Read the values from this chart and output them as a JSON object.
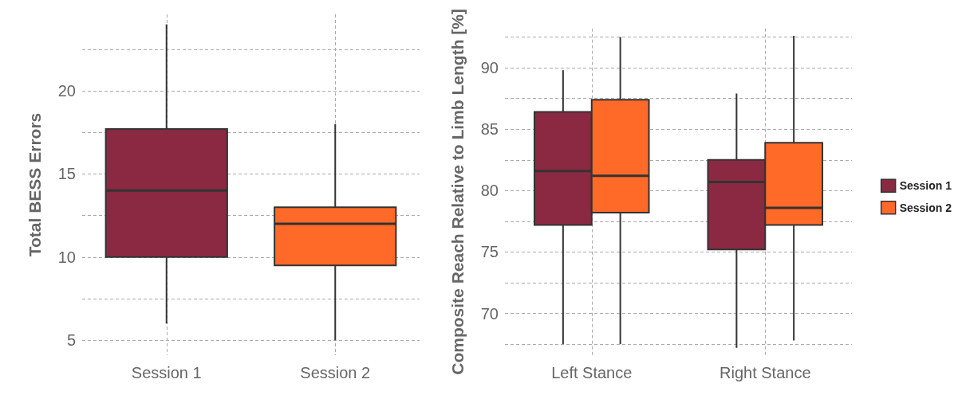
{
  "chart_data": [
    {
      "type": "box",
      "ylabel": "Total BESS Errors",
      "categories": [
        "Session 1",
        "Session 2"
      ],
      "colors": [
        "#8b2942",
        "#ff6a29"
      ],
      "boxes": [
        {
          "low": 6,
          "q1": 10,
          "median": 14,
          "q3": 17.7,
          "high": 24
        },
        {
          "low": 5,
          "q1": 9.5,
          "median": 12,
          "q3": 13,
          "high": 18
        }
      ],
      "ylim": [
        4.1,
        24.6
      ],
      "yticks": [
        5,
        {
          "value": 7.5,
          "label": null
        },
        10,
        {
          "value": 12.5,
          "label": null
        },
        15,
        {
          "value": 17.5,
          "label": null
        },
        20,
        {
          "value": 22.5,
          "label": null
        }
      ],
      "grid": true,
      "legend": false
    },
    {
      "type": "box",
      "ylabel": "Composite Reach Relative to Limb Length [%]",
      "categories": [
        "Left Stance",
        "Right Stance"
      ],
      "series": [
        {
          "name": "Session 1",
          "color": "#8b2942",
          "boxes": [
            {
              "low": 67.5,
              "q1": 77.2,
              "median": 81.6,
              "q3": 86.4,
              "high": 89.8
            },
            {
              "low": 67.2,
              "q1": 75.2,
              "median": 80.7,
              "q3": 82.5,
              "high": 87.9
            }
          ]
        },
        {
          "name": "Session 2",
          "color": "#ff6a29",
          "boxes": [
            {
              "low": 67.5,
              "q1": 78.2,
              "median": 81.2,
              "q3": 87.4,
              "high": 92.5
            },
            {
              "low": 67.8,
              "q1": 77.2,
              "median": 78.6,
              "q3": 83.9,
              "high": 92.6
            }
          ]
        }
      ],
      "ylim": [
        66.6,
        93.2
      ],
      "yticks": [
        {
          "value": 67.5,
          "label": null
        },
        70,
        {
          "value": 72.5,
          "label": null
        },
        75,
        {
          "value": 77.5,
          "label": null
        },
        80,
        {
          "value": 82.5,
          "label": null
        },
        85,
        {
          "value": 87.5,
          "label": null
        },
        90,
        {
          "value": 92.5,
          "label": null
        }
      ],
      "grid": true,
      "legend": "right"
    }
  ]
}
